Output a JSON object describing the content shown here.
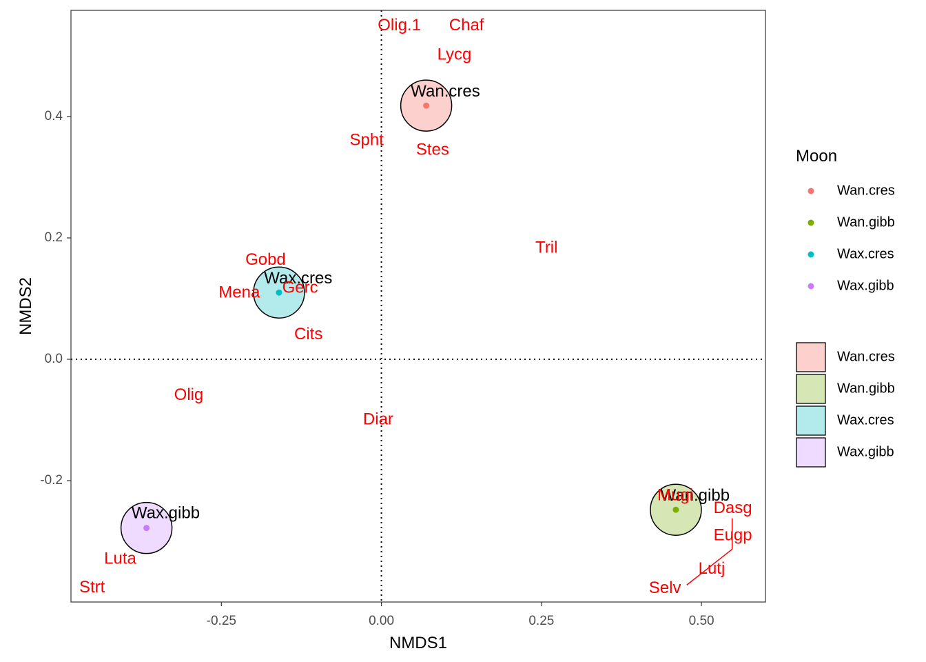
{
  "chart_data": {
    "type": "scatter",
    "xlabel": "NMDS1",
    "ylabel": "NMDS2",
    "xlim": [
      -0.485,
      0.6
    ],
    "ylim": [
      -0.4,
      0.575
    ],
    "x_ticks": [
      -0.25,
      0.0,
      0.25,
      0.5
    ],
    "x_tick_labels": [
      "-0.25",
      "0.00",
      "0.25",
      "0.50"
    ],
    "y_ticks": [
      -0.2,
      0.0,
      0.2,
      0.4
    ],
    "y_tick_labels": [
      "-0.2",
      "0.0",
      "0.2",
      "0.4"
    ],
    "reference_lines": {
      "x": 0.0,
      "y": 0.0,
      "style": "dotted"
    },
    "grid": false,
    "colors": {
      "Wan.cres": "#F8766D",
      "Wan.gibb": "#7CAE00",
      "Wax.cres": "#00BFC4",
      "Wax.gibb": "#C77CFF",
      "species_label": "#FF0000",
      "group_label": "#000000"
    },
    "groups": [
      {
        "name": "Wan.cres",
        "x": 0.07,
        "y": 0.418,
        "label_x": 0.1,
        "label_y": 0.44,
        "fill": "#FBD0CD"
      },
      {
        "name": "Wan.gibb",
        "x": 0.46,
        "y": -0.248,
        "label_x": 0.49,
        "label_y": -0.226,
        "fill": "#D7E6B5"
      },
      {
        "name": "Wax.cres",
        "x": -0.16,
        "y": 0.11,
        "label_x": -0.13,
        "label_y": 0.132,
        "fill": "#B3EBEC"
      },
      {
        "name": "Wax.gibb",
        "x": -0.367,
        "y": -0.278,
        "label_x": -0.337,
        "label_y": -0.255,
        "fill": "#EEDBFF"
      }
    ],
    "species": [
      {
        "name": "Olig.1",
        "x": 0.028,
        "y": 0.549
      },
      {
        "name": "Chaf",
        "x": 0.133,
        "y": 0.549
      },
      {
        "name": "Lycg",
        "x": 0.114,
        "y": 0.501
      },
      {
        "name": "Spht",
        "x": -0.023,
        "y": 0.36
      },
      {
        "name": "Stes",
        "x": 0.08,
        "y": 0.344
      },
      {
        "name": "Tril",
        "x": 0.258,
        "y": 0.183
      },
      {
        "name": "Gobd",
        "x": -0.181,
        "y": 0.163
      },
      {
        "name": "Gerc",
        "x": -0.127,
        "y": 0.117
      },
      {
        "name": "Mena",
        "x": -0.222,
        "y": 0.109
      },
      {
        "name": "Cits",
        "x": -0.114,
        "y": 0.04
      },
      {
        "name": "Olig",
        "x": -0.301,
        "y": -0.06
      },
      {
        "name": "Diar",
        "x": -0.005,
        "y": -0.1
      },
      {
        "name": "Luta",
        "x": -0.408,
        "y": -0.33
      },
      {
        "name": "Strt",
        "x": -0.452,
        "y": -0.377
      },
      {
        "name": "Mugi",
        "x": 0.459,
        "y": -0.225
      },
      {
        "name": "Dasg",
        "x": 0.549,
        "y": -0.246
      },
      {
        "name": "Eugp",
        "x": 0.549,
        "y": -0.291
      },
      {
        "name": "Lutj",
        "x": 0.516,
        "y": -0.346
      },
      {
        "name": "Selv",
        "x": 0.443,
        "y": -0.378
      }
    ],
    "repel_segments": [
      {
        "x1": 0.548,
        "y1": -0.262,
        "x2": 0.548,
        "y2": -0.313
      },
      {
        "x1": 0.548,
        "y1": -0.313,
        "x2": 0.477,
        "y2": -0.372
      }
    ],
    "legend": {
      "placement": "right",
      "title": "Moon",
      "point_entries": [
        "Wan.cres",
        "Wan.gibb",
        "Wax.cres",
        "Wax.gibb"
      ],
      "fill_entries": [
        "Wan.cres",
        "Wan.gibb",
        "Wax.cres",
        "Wax.gibb"
      ]
    }
  }
}
